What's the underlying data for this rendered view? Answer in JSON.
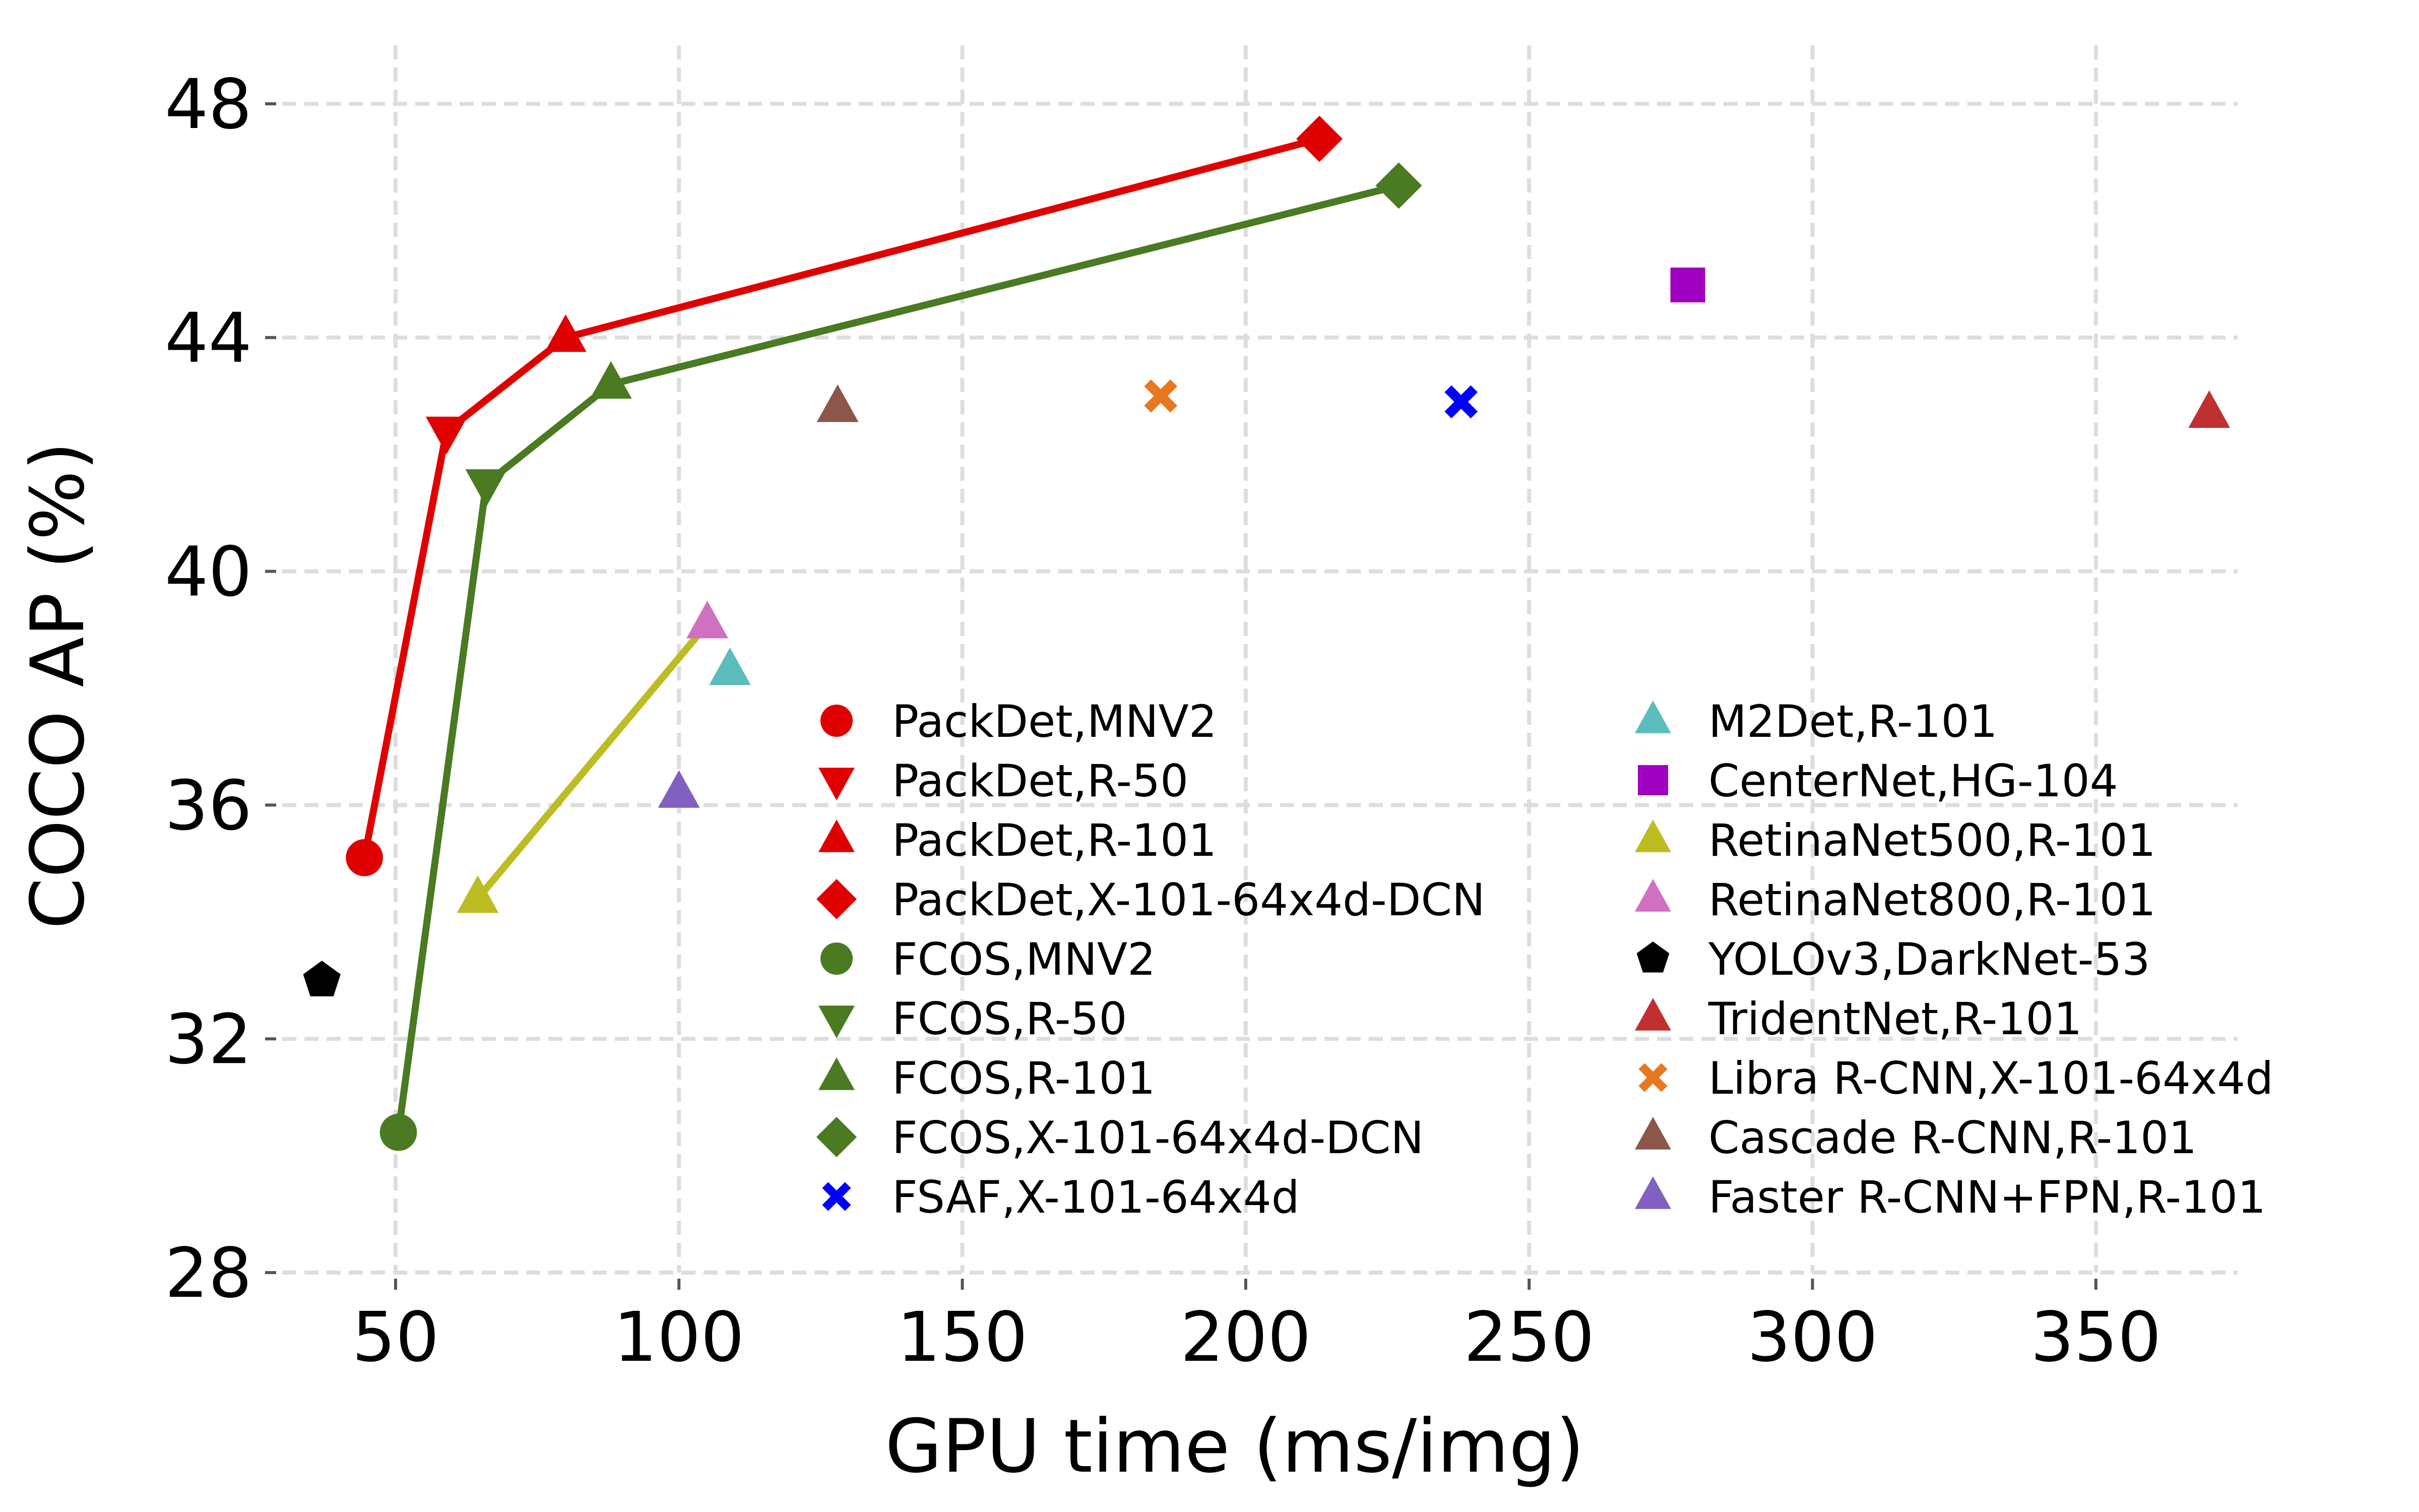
{
  "chart_data": {
    "type": "scatter",
    "xlabel": "GPU time (ms/img)",
    "ylabel": "COCO AP (%)",
    "xlim": [
      30,
      375
    ],
    "ylim": [
      28,
      49
    ],
    "xticks": [
      50,
      100,
      150,
      200,
      250,
      300,
      350
    ],
    "yticks": [
      28,
      32,
      36,
      40,
      44,
      48
    ],
    "grid": true,
    "grid_style": "dashed",
    "legend_placement": "lower-right, two columns",
    "series": [
      {
        "name": "PackDet,MNV2",
        "marker": "circle",
        "color": "#e00000",
        "x": [
          44.5
        ],
        "y": [
          35.1
        ]
      },
      {
        "name": "PackDet,R-50",
        "marker": "triangle-down",
        "color": "#e00000",
        "x": [
          59
        ],
        "y": [
          42.4
        ]
      },
      {
        "name": "PackDet,R-101",
        "marker": "triangle-up",
        "color": "#e00000",
        "x": [
          80
        ],
        "y": [
          44.0
        ]
      },
      {
        "name": "PackDet,X-101-64x4d-DCN",
        "marker": "diamond",
        "color": "#e00000",
        "x": [
          213
        ],
        "y": [
          47.4
        ]
      },
      {
        "name": "FCOS,MNV2",
        "marker": "circle",
        "color": "#4a7a21",
        "x": [
          50.5
        ],
        "y": [
          30.4
        ]
      },
      {
        "name": "FCOS,R-50",
        "marker": "triangle-down",
        "color": "#4a7a21",
        "x": [
          66
        ],
        "y": [
          41.5
        ]
      },
      {
        "name": "FCOS,R-101",
        "marker": "triangle-up",
        "color": "#4a7a21",
        "x": [
          88
        ],
        "y": [
          43.2
        ]
      },
      {
        "name": "FCOS,X-101-64x4d-DCN",
        "marker": "diamond",
        "color": "#4a7a21",
        "x": [
          227
        ],
        "y": [
          46.6
        ]
      },
      {
        "name": "FSAF,X-101-64x4d",
        "marker": "x-cross",
        "color": "#0000ff",
        "x": [
          238
        ],
        "y": [
          42.9
        ]
      },
      {
        "name": "M2Det,R-101",
        "marker": "triangle-up",
        "color": "#5bbcbc",
        "x": [
          109
        ],
        "y": [
          38.3
        ]
      },
      {
        "name": "CenterNet,HG-104",
        "marker": "square",
        "color": "#a000c0",
        "x": [
          278
        ],
        "y": [
          44.9
        ]
      },
      {
        "name": "RetinaNet500,R-101",
        "marker": "triangle-up",
        "color": "#bcbd22",
        "x": [
          64.5
        ],
        "y": [
          34.4
        ]
      },
      {
        "name": "RetinaNet800,R-101",
        "marker": "triangle-up",
        "color": "#d070c0",
        "x": [
          105
        ],
        "y": [
          39.1
        ]
      },
      {
        "name": "YOLOv3,DarkNet-53",
        "marker": "pentagon",
        "color": "#000000",
        "x": [
          37
        ],
        "y": [
          33.0
        ]
      },
      {
        "name": "TridentNet,R-101",
        "marker": "triangle-up",
        "color": "#c03030",
        "x": [
          370
        ],
        "y": [
          42.7
        ]
      },
      {
        "name": "Libra R-CNN,X-101-64x4d",
        "marker": "x-cross",
        "color": "#e87820",
        "x": [
          185
        ],
        "y": [
          43.0
        ]
      },
      {
        "name": "Cascade R-CNN,R-101",
        "marker": "triangle-up",
        "color": "#8c564b",
        "x": [
          128
        ],
        "y": [
          42.8
        ]
      },
      {
        "name": "Faster R-CNN+FPN,R-101",
        "marker": "triangle-up",
        "color": "#8060c0",
        "x": [
          100
        ],
        "y": [
          36.2
        ]
      }
    ],
    "lines": [
      {
        "color": "#e00000",
        "x": [
          44.5,
          59,
          80,
          213
        ],
        "y": [
          35.1,
          42.4,
          44.0,
          47.4
        ]
      },
      {
        "color": "#4a7a21",
        "x": [
          50.5,
          66,
          88,
          227
        ],
        "y": [
          30.4,
          41.5,
          43.2,
          46.6
        ]
      },
      {
        "color": "#bcbd22",
        "x": [
          64.5,
          105
        ],
        "y": [
          34.4,
          39.1
        ]
      }
    ]
  }
}
